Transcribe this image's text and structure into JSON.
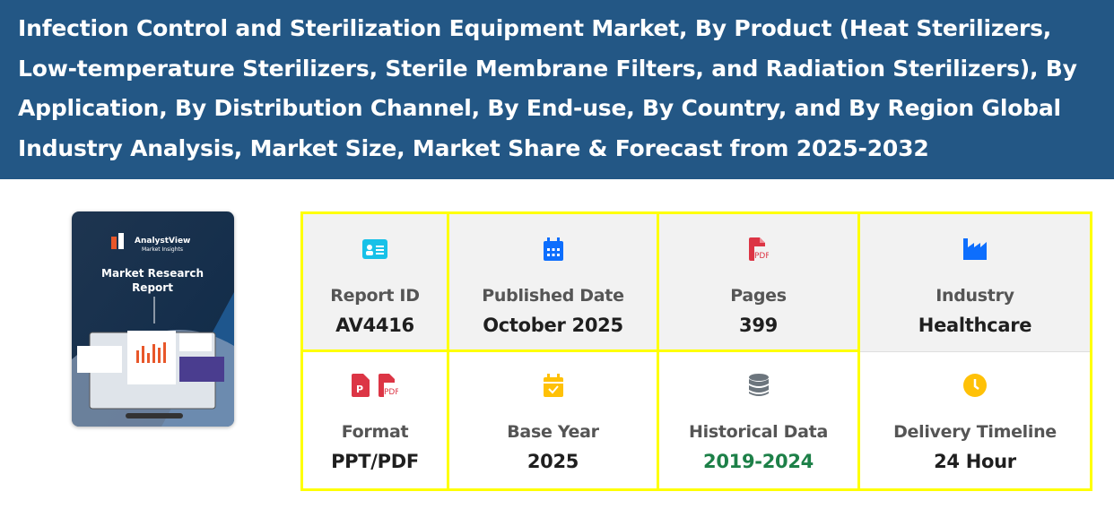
{
  "header": {
    "title": "Infection Control and Sterilization Equipment Market, By Product (Heat Sterilizers, Low-temperature Sterilizers, Sterile Membrane Filters, and Radiation Sterilizers), By Application, By Distribution Channel, By End-use, By Country, and By Region Global Industry Analysis, Market Size, Market Share & Forecast from 2025-2032"
  },
  "cover": {
    "brand": "AnalystView",
    "tagline": "Market Insights",
    "title_line1": "Market Research",
    "title_line2": "Report"
  },
  "details": [
    {
      "icon": "id-card-icon",
      "color": "#17c1e8",
      "label": "Report ID",
      "value": "AV4416"
    },
    {
      "icon": "calendar-icon",
      "color": "#0d6efd",
      "label": "Published Date",
      "value": "October 2025"
    },
    {
      "icon": "pdf-file-icon",
      "color": "#dc3545",
      "label": "Pages",
      "value": "399"
    },
    {
      "icon": "industry-icon",
      "color": "#0d6efd",
      "label": "Industry",
      "value": "Healthcare"
    },
    {
      "icon": "ppt-pdf-icon",
      "color": "#dc3545",
      "label": "Format",
      "value": "PPT/PDF"
    },
    {
      "icon": "calendar-check-icon",
      "color": "#ffc107",
      "label": "Base Year",
      "value": "2025"
    },
    {
      "icon": "database-icon",
      "color": "#6c757d",
      "label": "Historical Data",
      "value": "2019-2024",
      "value_color": "#1d8048"
    },
    {
      "icon": "clock-icon",
      "color": "#ffc107",
      "label": "Delivery Timeline",
      "value": "24 Hour"
    }
  ]
}
